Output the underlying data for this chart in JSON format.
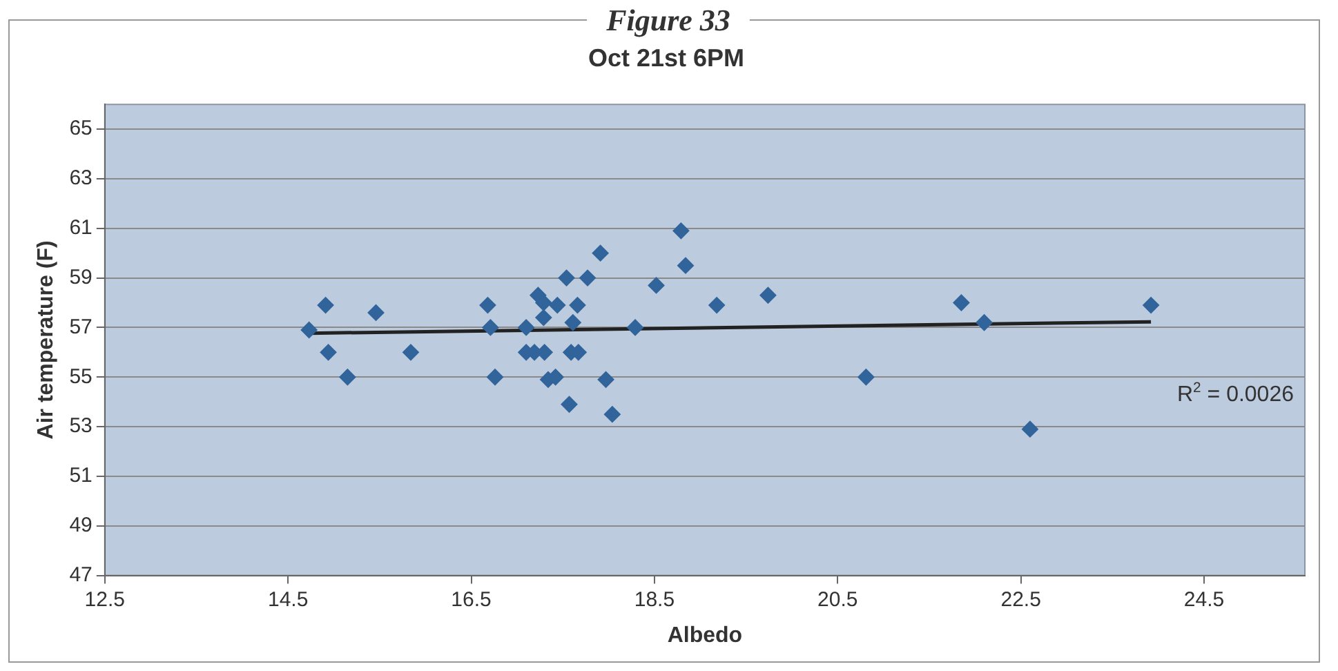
{
  "chart_data": {
    "type": "scatter",
    "title": "Oct 21st 6PM",
    "xlabel": "Albedo",
    "ylabel": "Air temperature (F)",
    "annotations": [
      "Figure 33",
      "R$^{2}$ = 0.0026"
    ],
    "xlim": [
      12.5,
      25.6
    ],
    "xticks": [
      12.5,
      14.5,
      16.5,
      18.5,
      20.5,
      22.5,
      24.5
    ],
    "ylim": [
      47,
      66
    ],
    "yticks": [
      47,
      49,
      51,
      53,
      55,
      57,
      59,
      61,
      63,
      65
    ],
    "grid": "y",
    "legend": false,
    "marker": "diamond",
    "series": [
      {
        "type": "scatter",
        "color": "#30649a",
        "x": [
          14.73,
          14.91,
          14.94,
          15.15,
          15.46,
          15.84,
          16.68,
          16.71,
          16.76,
          17.1,
          17.1,
          17.19,
          17.3,
          17.23,
          17.29,
          17.29,
          17.44,
          17.34,
          17.42,
          17.54,
          17.61,
          17.66,
          17.59,
          17.67,
          17.57,
          17.77,
          17.91,
          17.97,
          18.04,
          18.29,
          18.52,
          18.79,
          18.84,
          19.18,
          19.74,
          20.81,
          21.85,
          22.1,
          22.6,
          23.92
        ],
        "values": [
          56.9,
          57.9,
          56,
          55,
          57.6,
          56,
          57.9,
          57,
          55,
          57,
          56,
          56,
          56,
          58.3,
          58,
          57.4,
          57.9,
          54.9,
          55,
          59,
          57.2,
          57.9,
          56,
          56,
          53.9,
          59,
          60,
          54.9,
          53.5,
          57,
          58.7,
          60.9,
          59.5,
          57.9,
          58.3,
          55,
          58,
          57.2,
          52.9,
          57.9
        ]
      },
      {
        "type": "line",
        "color": "#222222",
        "marker": "none",
        "x": [
          14.73,
          23.92
        ],
        "values": [
          56.77,
          57.23
        ]
      }
    ]
  }
}
